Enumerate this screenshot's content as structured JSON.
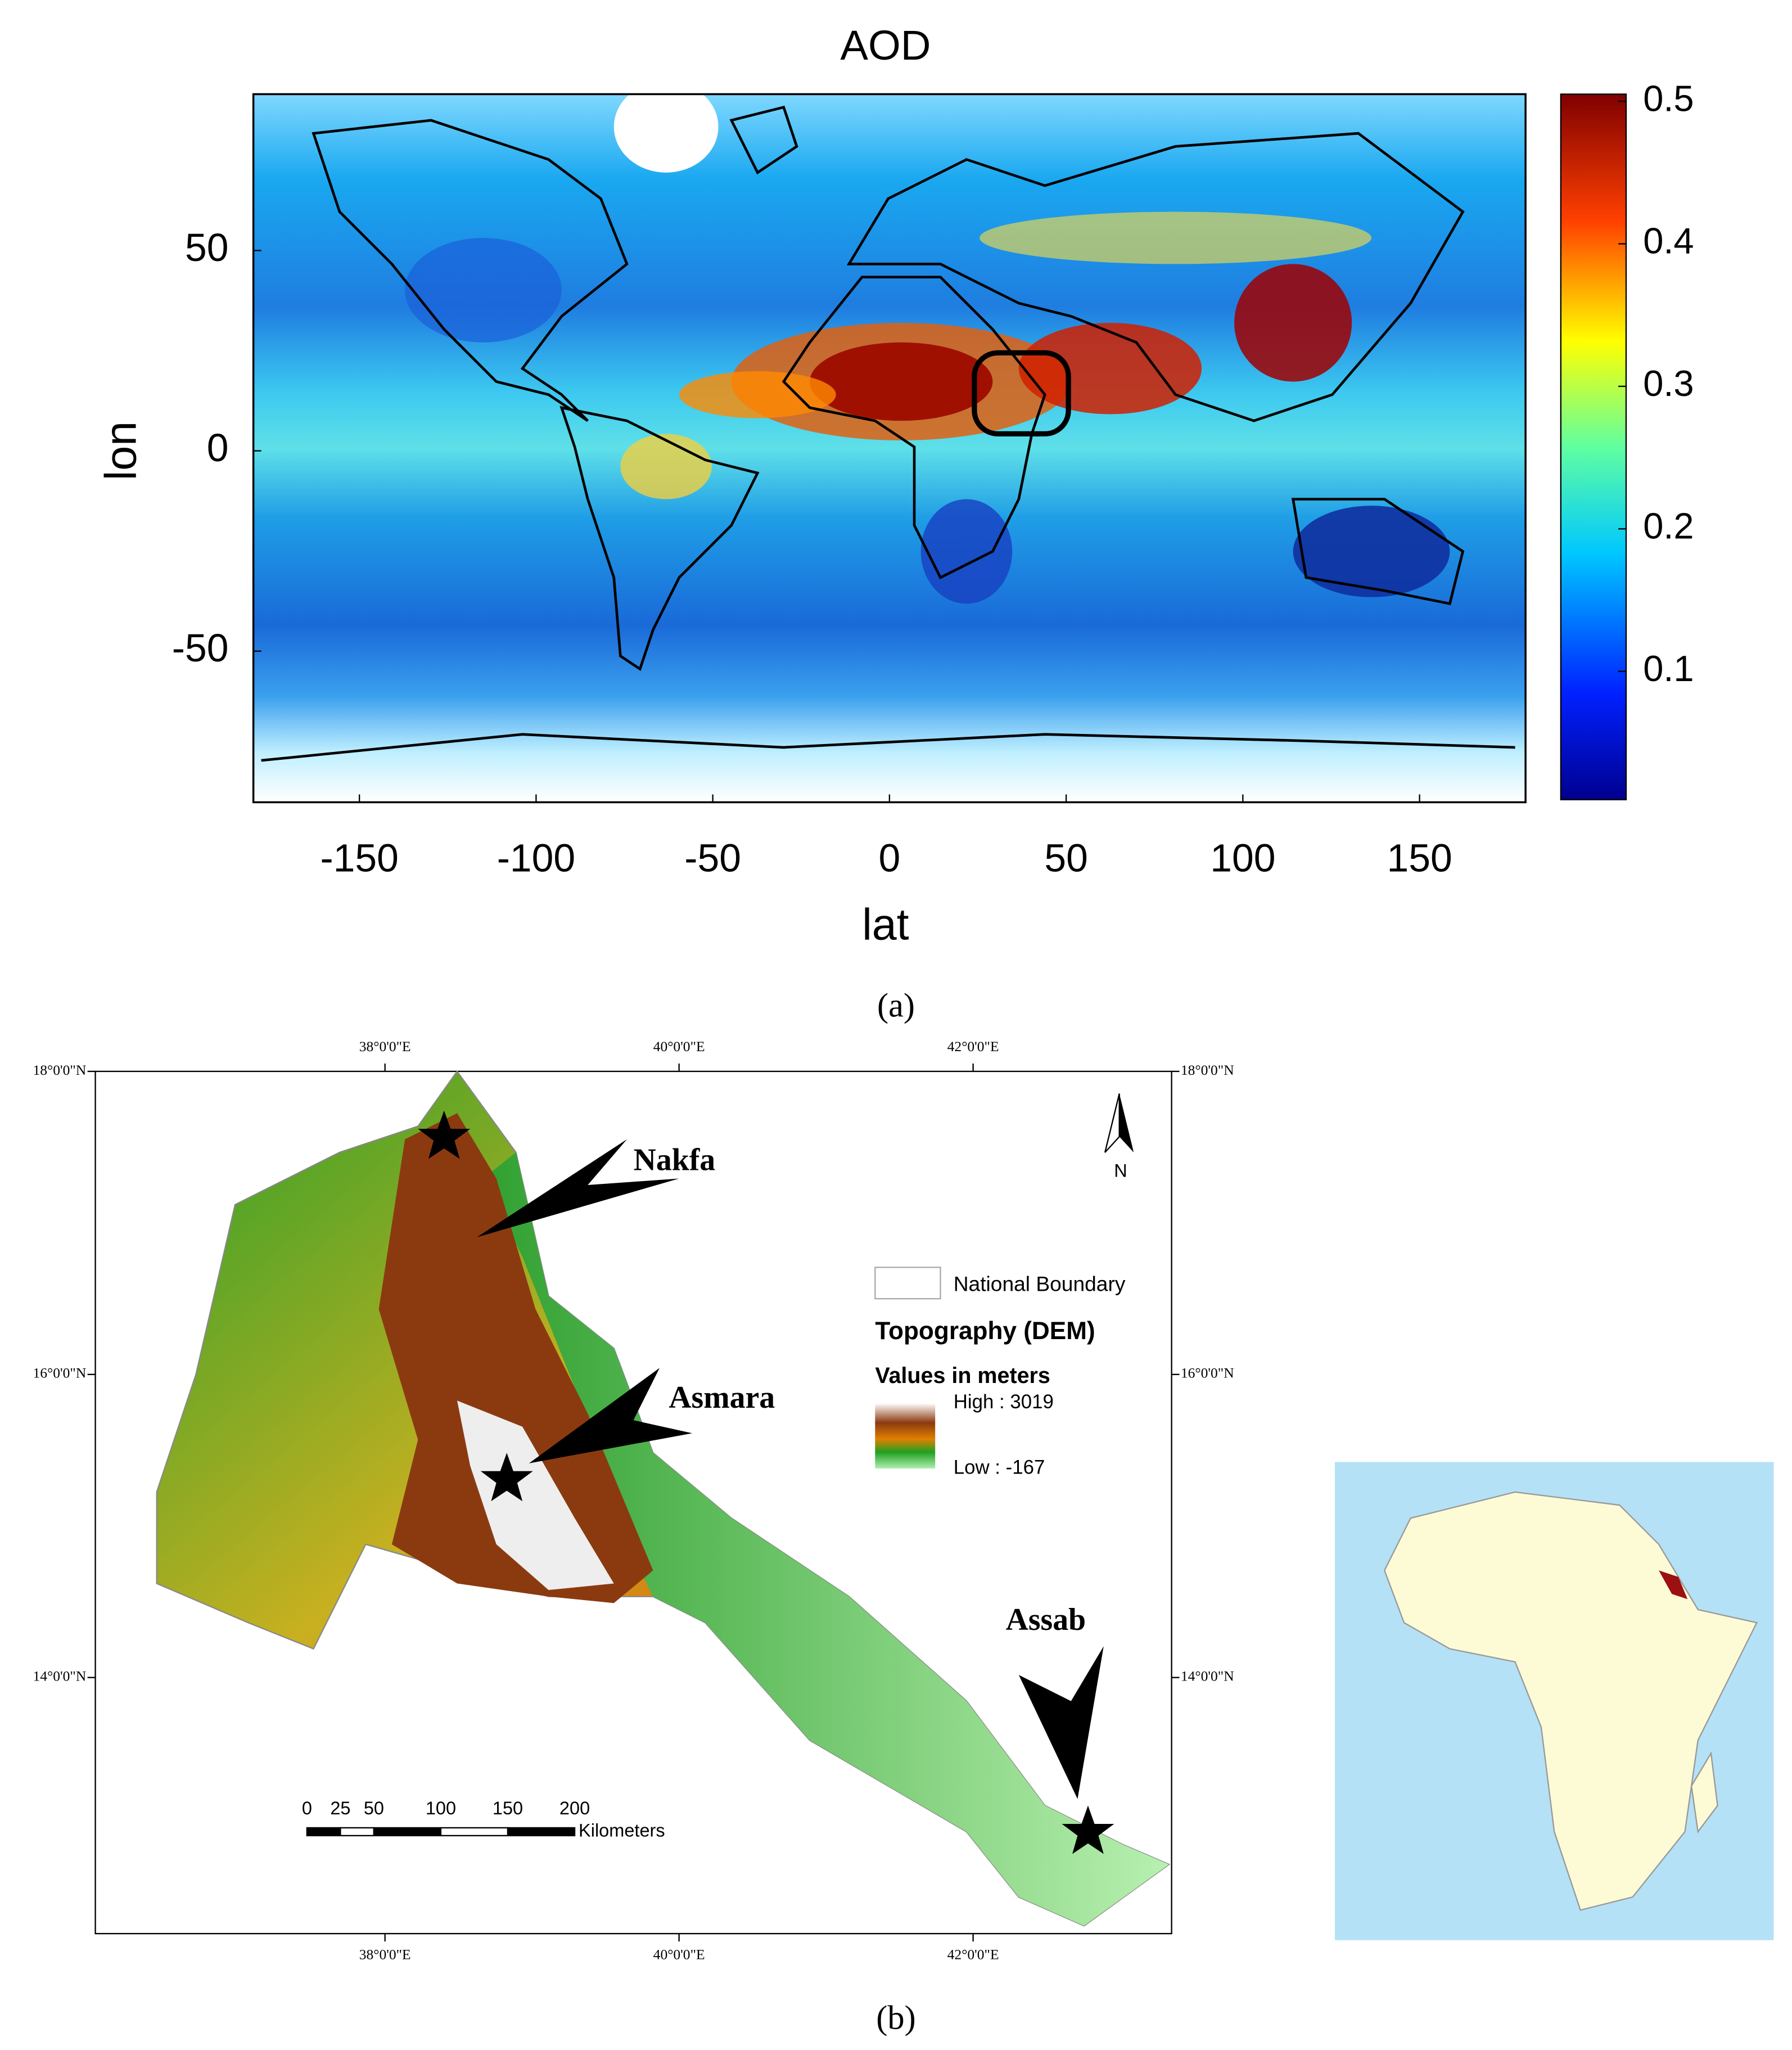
{
  "panel_a": {
    "title": "AOD",
    "xlabel": "lat",
    "ylabel": "lon",
    "xlim": [
      -180,
      180
    ],
    "ylim": [
      -90,
      90
    ],
    "xticks": [
      -150,
      -100,
      -50,
      0,
      50,
      100,
      150
    ],
    "yticks": [
      -50,
      0,
      50
    ],
    "colorbar": {
      "lim": [
        0.01,
        0.505
      ],
      "ticks": [
        0.1,
        0.2,
        0.3,
        0.4,
        0.5
      ]
    },
    "caption": "(a)"
  },
  "panel_b": {
    "xlim": [
      36.03,
      43.35
    ],
    "ylim": [
      12.31,
      18.0
    ],
    "xticks": [
      {
        "value": 38,
        "label": "38°0'0\"E"
      },
      {
        "value": 40,
        "label": "40°0'0\"E"
      },
      {
        "value": 42,
        "label": "42°0'0\"E"
      }
    ],
    "yticks": [
      {
        "value": 18,
        "label": "18°0'0\"N"
      },
      {
        "value": 16,
        "label": "16°0'0\"N"
      },
      {
        "value": 14,
        "label": "14°0'0\"N"
      }
    ],
    "cities": [
      "Nakfa",
      "Asmara",
      "Assab"
    ],
    "legend": {
      "boundary": "National Boundary",
      "title": "Topography (DEM)",
      "subtitle": "Values in meters",
      "high": "High : 3019",
      "low": "Low : -167"
    },
    "scale_bar": {
      "ticks": [
        0,
        25,
        50,
        100,
        150,
        200
      ],
      "unit": "Kilometers"
    },
    "north": "N",
    "caption": "(b)"
  }
}
